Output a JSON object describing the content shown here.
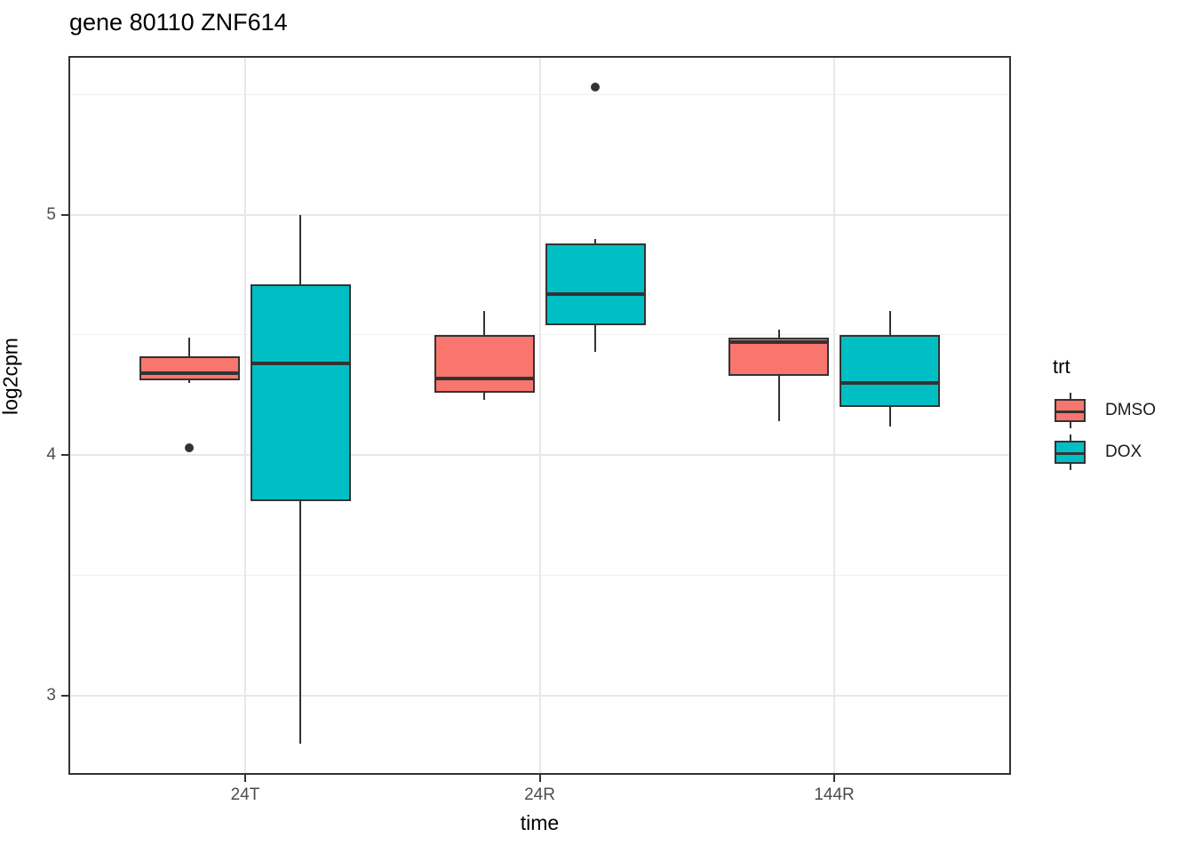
{
  "chart_data": {
    "type": "boxplot",
    "title": "gene 80110 ZNF614",
    "xlabel": "time",
    "ylabel": "log2cpm",
    "categories": [
      "24T",
      "24R",
      "144R"
    ],
    "y_ticks": [
      5,
      4,
      3
    ],
    "y_minor_ticks": [
      5.5,
      4.5,
      3.5
    ],
    "ylim": [
      2.67,
      5.66
    ],
    "grid": true,
    "legend": {
      "title": "trt",
      "position": "right",
      "entries": [
        {
          "label": "DMSO",
          "color": "#F8766D"
        },
        {
          "label": "DOX",
          "color": "#00BFC4"
        }
      ]
    },
    "series": [
      {
        "name": "DMSO",
        "color": "#F8766D",
        "boxes": [
          {
            "category": "24T",
            "whisker_low": 4.3,
            "q1": 4.31,
            "median": 4.34,
            "q3": 4.41,
            "whisker_high": 4.49,
            "outliers": [
              4.03
            ]
          },
          {
            "category": "24R",
            "whisker_low": 4.23,
            "q1": 4.26,
            "median": 4.32,
            "q3": 4.5,
            "whisker_high": 4.6,
            "outliers": []
          },
          {
            "category": "144R",
            "whisker_low": 4.14,
            "q1": 4.33,
            "median": 4.47,
            "q3": 4.49,
            "whisker_high": 4.52,
            "outliers": []
          }
        ]
      },
      {
        "name": "DOX",
        "color": "#00BFC4",
        "boxes": [
          {
            "category": "24T",
            "whisker_low": 2.8,
            "q1": 3.81,
            "median": 4.38,
            "q3": 4.71,
            "whisker_high": 5.0,
            "outliers": []
          },
          {
            "category": "24R",
            "whisker_low": 4.43,
            "q1": 4.54,
            "median": 4.67,
            "q3": 4.88,
            "whisker_high": 4.9,
            "outliers": [
              5.53
            ]
          },
          {
            "category": "144R",
            "whisker_low": 4.12,
            "q1": 4.2,
            "median": 4.3,
            "q3": 4.5,
            "whisker_high": 4.6,
            "outliers": []
          }
        ]
      }
    ],
    "colors": {
      "box_outline": "#333333",
      "outlier": "#333333",
      "grid_major": "#E8E8E8",
      "grid_minor": "#F0F0F0",
      "axis_text": "#4D4D4D",
      "panel_border": "#333333",
      "background": "#FFFFFF"
    }
  }
}
